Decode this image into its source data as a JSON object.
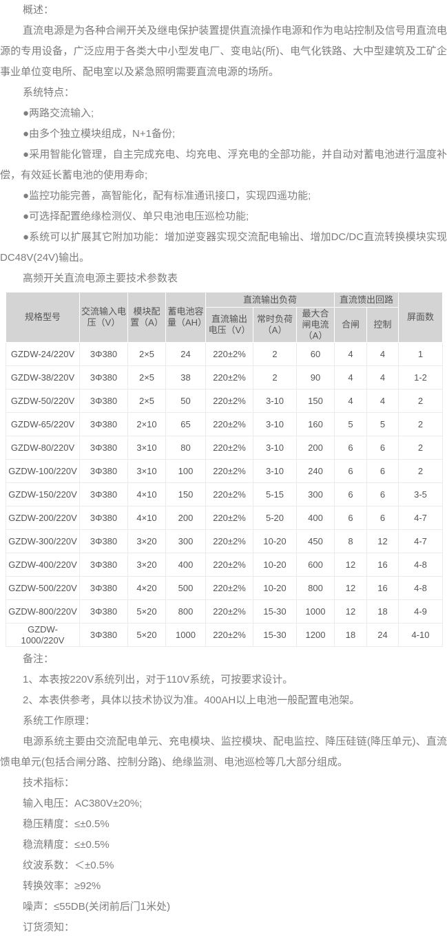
{
  "colors": {
    "page_background": "#ffffff",
    "body_text": "#7d7d7d",
    "table_header_background": "#d4d4d4",
    "table_text": "#555555",
    "table_border": "#ebebeb"
  },
  "overview": {
    "heading": "概述：",
    "text": "直流电源是为各种合闸开关及继电保护装置提供直流操作电源和作为电站控制及信号用直流电源的专用设备，广泛应用于各类大中小型发电厂、变电站(所)、电气化铁路、大中型建筑及工矿企事业单位变电所、配电室以及紧急照明需要直流电源的场所。"
  },
  "features": {
    "heading": "系统特点：",
    "items": [
      "●两路交流输入;",
      "●由多个独立模块组成，N+1备份;",
      "●采用智能化管理，自主完成充电、均充电、浮充电的全部功能，并自动对蓄电池进行温度补偿，有效延长蓄电池的使用寿命;",
      "●监控功能完善，高智能化，配有标准通讯接口，实现四遥功能;",
      "●可选择配置绝缘检测仪、单只电池电压巡检功能;",
      "●系统可以扩展其它附加功能：增加逆变器实现交流配电输出、增加DC/DC直流转换模块实现DC48V(24V)输出。"
    ]
  },
  "table": {
    "title": "高频开关直流电源主要技术参数表",
    "headers": {
      "model": "规格型号",
      "ac_input_voltage": "交流输入电压（V）",
      "module_config": "模块配置（A）",
      "battery_capacity": "蓄电池容量（AH）",
      "dc_output_load_group": "直流输出负荷",
      "dc_output_voltage": "直流输出电压（V）",
      "normal_load": "常时负荷（A）",
      "max_closing_current": "最大合闸电流（A）",
      "dc_feed_circuit_group": "直流馈出回路",
      "closing": "合闸",
      "control": "控制",
      "panel_count": "屏面数"
    },
    "rows": [
      [
        "GZDW-24/220V",
        "3Φ380",
        "2×5",
        "24",
        "220±2%",
        "2",
        "60",
        "4",
        "4",
        "1"
      ],
      [
        "GZDW-38/220V",
        "3Φ380",
        "2×5",
        "38",
        "220±2%",
        "2",
        "90",
        "4",
        "4",
        "1-2"
      ],
      [
        "GZDW-50/220V",
        "3Φ380",
        "2×5",
        "50",
        "220±2%",
        "3-10",
        "150",
        "4",
        "4",
        "2"
      ],
      [
        "GZDW-65/220V",
        "3Φ380",
        "2×10",
        "65",
        "220±2%",
        "3-10",
        "160",
        "5",
        "5",
        "2"
      ],
      [
        "GZDW-80/220V",
        "3Φ380",
        "3×10",
        "80",
        "220±2%",
        "3-10",
        "200",
        "6",
        "6",
        "2"
      ],
      [
        "GZDW-100/220V",
        "3Φ380",
        "3×10",
        "100",
        "220±2%",
        "3-10",
        "240",
        "6",
        "6",
        "2"
      ],
      [
        "GZDW-150/220V",
        "3Φ380",
        "4×10",
        "150",
        "220±2%",
        "5-15",
        "300",
        "6",
        "6",
        "3-5"
      ],
      [
        "GZDW-200/220V",
        "3Φ380",
        "4×10",
        "200",
        "220±2%",
        "5-20",
        "400",
        "6",
        "6",
        "4-7"
      ],
      [
        "GZDW-300/220V",
        "3Φ380",
        "3×20",
        "300",
        "220±2%",
        "10-20",
        "450",
        "8",
        "12",
        "4-7"
      ],
      [
        "GZDW-400/220V",
        "3Φ380",
        "3×20",
        "400",
        "220±2%",
        "10-20",
        "600",
        "12",
        "16",
        "4-8"
      ],
      [
        "GZDW-500/220V",
        "3Φ380",
        "4×20",
        "500",
        "220±2%",
        "10-20",
        "800",
        "12",
        "16",
        "4-8"
      ],
      [
        "GZDW-800/220V",
        "3Φ380",
        "5×20",
        "800",
        "220±2%",
        "15-30",
        "1000",
        "12",
        "18",
        "4-9"
      ],
      [
        "GZDW-1000/220V",
        "3Φ380",
        "5×20",
        "1000",
        "220±2%",
        "15-30",
        "1200",
        "18",
        "24",
        "4-10"
      ]
    ]
  },
  "notes": {
    "heading": "备注：",
    "items": [
      "1、本表按220V系统列出，对于110V系统，可按要求设计。",
      "2、本表供参考，具体以技术协议为准。400AH以上电池一般配置电池架。"
    ]
  },
  "principle": {
    "heading": "系统工作原理：",
    "text": "电源系统主要由交流配电单元、充电模块、监控模块、配电监控、降压硅链(降压单元)、直流馈电单元(包括合闸分路、控制分路)、绝缘监测、电池巡检等几大部分组成。"
  },
  "indicators": {
    "heading": "技术指标：",
    "items": [
      "输入电压：AC380V±20%;",
      "稳压精度：≤±0.5%",
      "稳流精度：≤±0.5%",
      "纹波系数：＜±0.5%",
      "转换效率：≥92%",
      "噪声：≤55DB(关闭前后门1米处)"
    ]
  },
  "ordering": {
    "heading": "订货须知："
  }
}
